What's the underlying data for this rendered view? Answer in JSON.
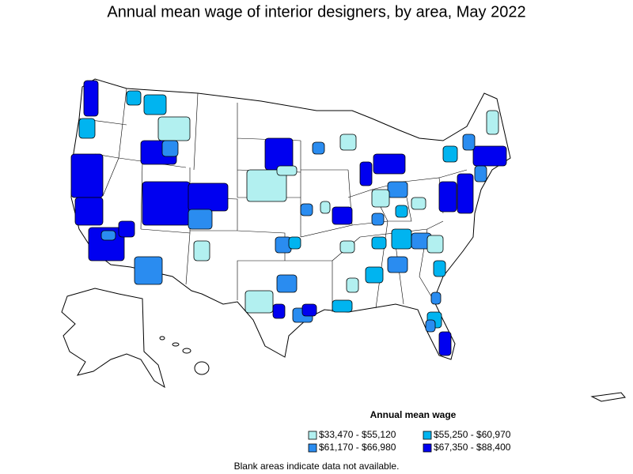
{
  "title": "Annual mean wage of interior designers, by area, May 2022",
  "legend": {
    "title": "Annual mean wage",
    "items": [
      {
        "label": "$33,470 - $55,120",
        "color": "#b2f0f0"
      },
      {
        "label": "$55,250 - $60,970",
        "color": "#00b4f0"
      },
      {
        "label": "$61,170 - $66,980",
        "color": "#2a8cf0"
      },
      {
        "label": "$67,350 - $88,400",
        "color": "#0000f0"
      }
    ]
  },
  "footnote": "Blank areas indicate data not available."
}
